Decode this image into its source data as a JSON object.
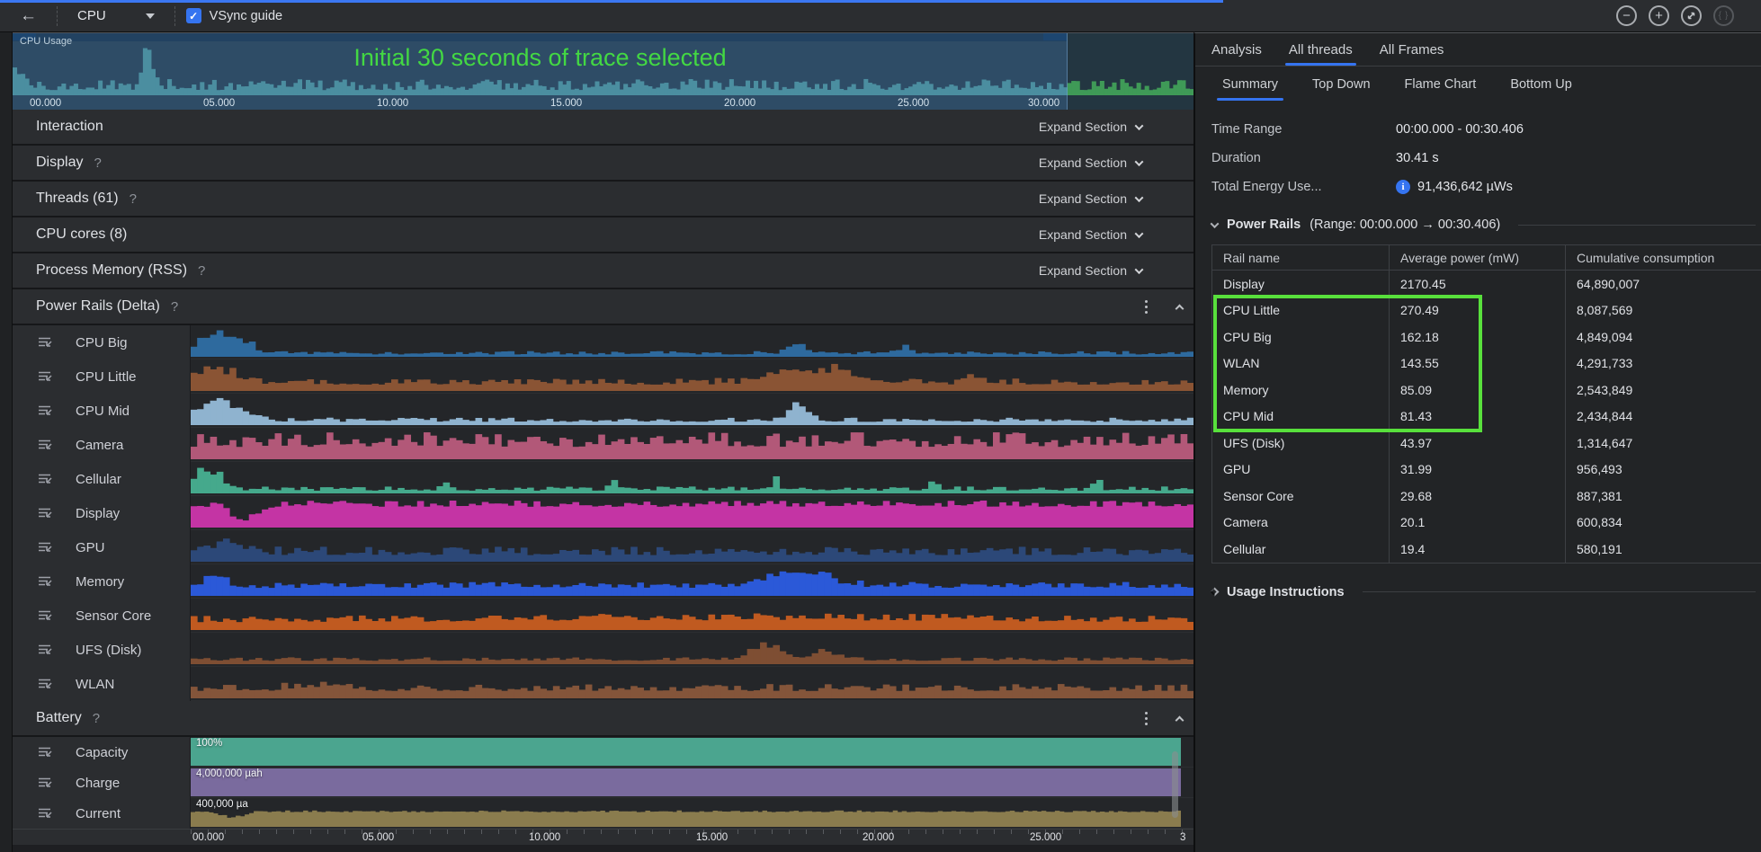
{
  "toolbar": {
    "process_selector": "CPU",
    "vsync": {
      "checked": true,
      "label": "VSync guide"
    },
    "zoom_icons": {
      "zoom_out": "−",
      "zoom_in": "+",
      "reset_zoom": "reset",
      "zoom_to_selection": "{ }"
    }
  },
  "timeline": {
    "label": "CPU Usage",
    "annotation": "Initial 30 seconds of trace selected",
    "axis_labels": [
      "00.000",
      "05.000",
      "10.000",
      "15.000",
      "20.000",
      "25.000",
      "30.000"
    ]
  },
  "help_glyph": "?",
  "expand_label": "Expand Section",
  "sections": [
    {
      "label": "Interaction",
      "help": false
    },
    {
      "label": "Display",
      "help": true
    },
    {
      "label": "Threads (61)",
      "help": true
    },
    {
      "label": "CPU cores (8)",
      "help": false
    },
    {
      "label": "Process Memory (RSS)",
      "help": true
    }
  ],
  "power_rails": {
    "header": {
      "label": "Power Rails (Delta)",
      "help": true
    },
    "rails": [
      {
        "name": "CPU Big",
        "color": "#2e6a9e",
        "profile": {
          "base": 0.1,
          "noise": 0.1,
          "spikes": [
            [
              0.018,
              0.015,
              0.78
            ],
            [
              0.05,
              0.01,
              0.45
            ],
            [
              0.6,
              0.008,
              0.45
            ],
            [
              0.71,
              0.006,
              0.28
            ]
          ]
        }
      },
      {
        "name": "CPU Little",
        "color": "#8a5434",
        "profile": {
          "base": 0.26,
          "noise": 0.18,
          "spikes": [
            [
              0.02,
              0.02,
              0.5
            ],
            [
              0.62,
              0.035,
              0.52
            ],
            [
              0.78,
              0.01,
              0.22
            ]
          ]
        }
      },
      {
        "name": "CPU Mid",
        "color": "#8fb3cf",
        "profile": {
          "base": 0.14,
          "noise": 0.12,
          "spikes": [
            [
              0.025,
              0.02,
              0.72
            ],
            [
              0.6,
              0.01,
              0.5
            ]
          ]
        }
      },
      {
        "name": "Camera",
        "color": "#b25878",
        "profile": {
          "base": 0.52,
          "noise": 0.42,
          "spikes": []
        }
      },
      {
        "name": "Cellular",
        "color": "#45a98c",
        "profile": {
          "base": 0.12,
          "noise": 0.12,
          "spikes": [
            [
              0.015,
              0.012,
              0.8
            ],
            [
              0.25,
              0.004,
              0.3
            ],
            [
              0.42,
              0.004,
              0.3
            ],
            [
              0.58,
              0.004,
              0.32
            ],
            [
              0.74,
              0.004,
              0.3
            ],
            [
              0.9,
              0.004,
              0.3
            ]
          ]
        }
      },
      {
        "name": "Display",
        "color": "#c434a4",
        "profile": {
          "base": 0.78,
          "noise": 0.18,
          "spikes": [
            [
              0.05,
              0.012,
              -0.5
            ]
          ]
        }
      },
      {
        "name": "GPU",
        "color": "#2c4878",
        "profile": {
          "base": 0.28,
          "noise": 0.24,
          "spikes": [
            [
              0.03,
              0.02,
              0.3
            ]
          ]
        }
      },
      {
        "name": "Memory",
        "color": "#2b59d8",
        "profile": {
          "base": 0.32,
          "noise": 0.18,
          "spikes": [
            [
              0.02,
              0.01,
              0.38
            ],
            [
              0.6,
              0.03,
              0.5
            ]
          ]
        }
      },
      {
        "name": "Sensor Core",
        "color": "#c05a20",
        "profile": {
          "base": 0.3,
          "noise": 0.18,
          "spikes": [
            [
              0.55,
              0.25,
              0.1
            ]
          ]
        }
      },
      {
        "name": "UFS (Disk)",
        "color": "#7e4e33",
        "profile": {
          "base": 0.14,
          "noise": 0.1,
          "spikes": [
            [
              0.57,
              0.015,
              0.55
            ],
            [
              0.63,
              0.01,
              0.28
            ]
          ]
        }
      },
      {
        "name": "WLAN",
        "color": "#84553a",
        "profile": {
          "base": 0.3,
          "noise": 0.2,
          "spikes": [
            [
              0.12,
              0.02,
              0.12
            ]
          ]
        }
      }
    ]
  },
  "battery": {
    "header": {
      "label": "Battery",
      "help": true
    },
    "tracks": [
      {
        "name": "Capacity",
        "color": "#4ba58f",
        "value_label": "100%",
        "fill": 1
      },
      {
        "name": "Charge",
        "color": "#7a6b9e",
        "value_label": "4,000,000 µah",
        "fill": 1
      },
      {
        "name": "Current",
        "color": "#8a7c4e",
        "value_label": "400,000 µa",
        "fill": 0.52
      }
    ]
  },
  "bottom_axis": [
    "00.000",
    "05.000",
    "10.000",
    "15.000",
    "20.000",
    "25.000",
    "3"
  ],
  "usage_profile": {
    "base": 0.13,
    "noise": 0.17,
    "spikes": [
      [
        0.113,
        0.004,
        0.9
      ],
      [
        0.0,
        0.008,
        0.25
      ]
    ]
  },
  "right_panel": {
    "tabs": [
      {
        "label": "Analysis",
        "active": false
      },
      {
        "label": "All threads",
        "active": true
      },
      {
        "label": "All Frames",
        "active": false
      }
    ],
    "subtabs": [
      {
        "label": "Summary",
        "active": true
      },
      {
        "label": "Top Down",
        "active": false
      },
      {
        "label": "Flame Chart",
        "active": false
      },
      {
        "label": "Bottom Up",
        "active": false
      }
    ],
    "summary": [
      {
        "label": "Time Range",
        "value": "00:00.000 - 00:30.406",
        "info": false
      },
      {
        "label": "Duration",
        "value": "30.41 s",
        "info": false
      },
      {
        "label": "Total Energy Use...",
        "value": "91,436,642 µWs",
        "info": true
      }
    ],
    "power_rails_summary": {
      "title": "Power Rails",
      "range": "(Range: 00:00.000 → 00:30.406)"
    },
    "table": {
      "columns": [
        "Rail name",
        "Average power (mW)",
        "Cumulative consumption"
      ],
      "rows": [
        [
          "Display",
          "2170.45",
          "64,890,007"
        ],
        [
          "CPU Little",
          "270.49",
          "8,087,569"
        ],
        [
          "CPU Big",
          "162.18",
          "4,849,094"
        ],
        [
          "WLAN",
          "143.55",
          "4,291,733"
        ],
        [
          "Memory",
          "85.09",
          "2,543,849"
        ],
        [
          "CPU Mid",
          "81.43",
          "2,434,844"
        ],
        [
          "UFS (Disk)",
          "43.97",
          "1,314,647"
        ],
        [
          "GPU",
          "31.99",
          "956,493"
        ],
        [
          "Sensor Core",
          "29.68",
          "887,381"
        ],
        [
          "Camera",
          "20.1",
          "600,834"
        ],
        [
          "Cellular",
          "19.4",
          "580,191"
        ]
      ],
      "highlight_rows": [
        1,
        5
      ]
    },
    "usage_instructions": "Usage Instructions"
  },
  "colors": {
    "accent_blue": "#3574f0",
    "annotation_green": "#43d843",
    "highlight_box_green": "#58e03c",
    "selection_blue": "#3e6c9c",
    "wave_selected": "#55a8a4",
    "wave_unselected": "#3f9a57"
  }
}
